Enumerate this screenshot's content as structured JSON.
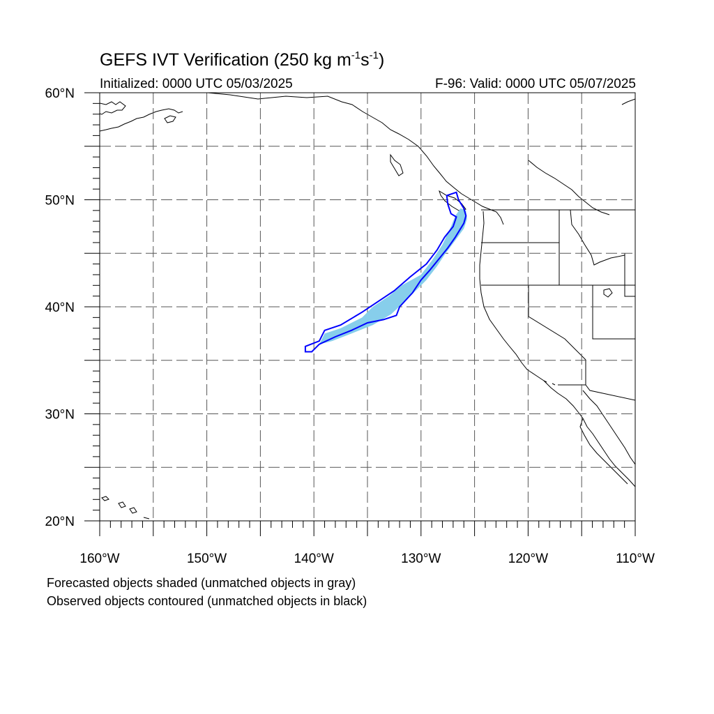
{
  "header": {
    "title_main": "GEFS IVT Verification (250 kg m",
    "title_sup1": "-1",
    "title_mid": "s",
    "title_sup2": "-1",
    "title_end": ")",
    "initialized": "Initialized: 0000 UTC 05/03/2025",
    "valid": "F-96: Valid: 0000 UTC 05/07/2025"
  },
  "map": {
    "projection": "cylindrical equidistant",
    "lon_range": [
      -160,
      -110
    ],
    "lat_range": [
      20,
      60
    ],
    "lat_labels": [
      {
        "lat": 60,
        "text": "60°N"
      },
      {
        "lat": 50,
        "text": "50°N"
      },
      {
        "lat": 40,
        "text": "40°N"
      },
      {
        "lat": 30,
        "text": "30°N"
      },
      {
        "lat": 20,
        "text": "20°N"
      }
    ],
    "lon_labels": [
      {
        "lon": -160,
        "text": "160°W"
      },
      {
        "lon": -150,
        "text": "150°W"
      },
      {
        "lon": -140,
        "text": "140°W"
      },
      {
        "lon": -130,
        "text": "130°W"
      },
      {
        "lon": -120,
        "text": "120°W"
      },
      {
        "lon": -110,
        "text": "110°W"
      }
    ],
    "grid_spacing_deg": 5,
    "forecast_object": {
      "fill_color": "#87ceeb",
      "outline": [
        [
          -139.5,
          36.5
        ],
        [
          -139.0,
          37.5
        ],
        [
          -137.5,
          38.0
        ],
        [
          -135.5,
          39.0
        ],
        [
          -134.5,
          40.0
        ],
        [
          -133.0,
          41.0
        ],
        [
          -131.8,
          42.0
        ],
        [
          -130.0,
          43.0
        ],
        [
          -129.0,
          44.3
        ],
        [
          -128.0,
          45.8
        ],
        [
          -127.2,
          47.5
        ],
        [
          -126.8,
          48.5
        ],
        [
          -126.3,
          49.2
        ],
        [
          -125.8,
          49.0
        ],
        [
          -125.7,
          48.2
        ],
        [
          -126.0,
          47.3
        ],
        [
          -126.8,
          46.2
        ],
        [
          -127.7,
          45.0
        ],
        [
          -128.5,
          43.8
        ],
        [
          -129.5,
          42.5
        ],
        [
          -130.5,
          41.5
        ],
        [
          -131.5,
          40.5
        ],
        [
          -132.8,
          39.3
        ],
        [
          -134.5,
          38.3
        ],
        [
          -136.5,
          37.5
        ],
        [
          -138.3,
          36.8
        ]
      ]
    },
    "observed_object": {
      "line_color": "#0000ff",
      "outline": [
        [
          -140.8,
          35.8
        ],
        [
          -140.8,
          36.3
        ],
        [
          -139.5,
          36.8
        ],
        [
          -139.0,
          37.8
        ],
        [
          -137.5,
          38.3
        ],
        [
          -135.5,
          39.5
        ],
        [
          -134.0,
          40.5
        ],
        [
          -132.5,
          41.5
        ],
        [
          -131.0,
          42.8
        ],
        [
          -129.5,
          44.0
        ],
        [
          -128.5,
          45.3
        ],
        [
          -127.8,
          46.5
        ],
        [
          -127.0,
          47.5
        ],
        [
          -126.7,
          48.4
        ],
        [
          -127.2,
          48.7
        ],
        [
          -127.5,
          49.6
        ],
        [
          -127.6,
          50.4
        ],
        [
          -126.7,
          50.7
        ],
        [
          -126.5,
          50.0
        ],
        [
          -126.0,
          49.2
        ],
        [
          -125.8,
          48.5
        ],
        [
          -126.0,
          47.8
        ],
        [
          -126.8,
          46.5
        ],
        [
          -127.5,
          45.5
        ],
        [
          -128.3,
          44.5
        ],
        [
          -129.2,
          43.4
        ],
        [
          -130.0,
          42.5
        ],
        [
          -130.8,
          41.3
        ],
        [
          -132.0,
          40.0
        ],
        [
          -132.3,
          39.2
        ],
        [
          -133.5,
          38.8
        ],
        [
          -135.0,
          38.5
        ],
        [
          -136.5,
          37.8
        ],
        [
          -138.0,
          37.2
        ],
        [
          -139.5,
          36.5
        ],
        [
          -140.2,
          35.8
        ]
      ]
    }
  },
  "legend_notes": {
    "line1": "Forecasted objects shaded (unmatched objects in gray)",
    "line2": "Observed objects contoured (unmatched objects in black)"
  }
}
